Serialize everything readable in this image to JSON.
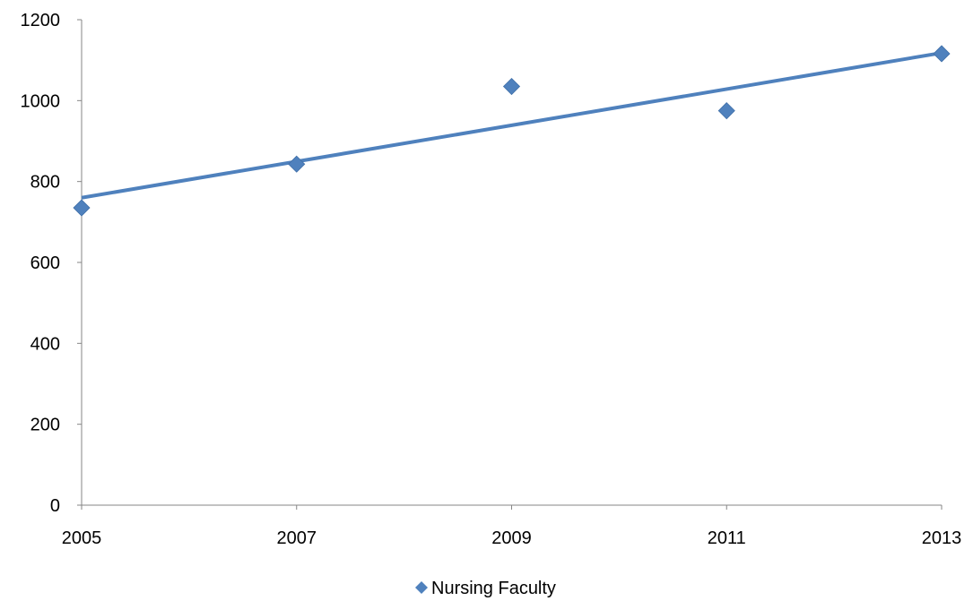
{
  "chart_data": {
    "type": "scatter",
    "x_ticks": [
      "2005",
      "2007",
      "2009",
      "2011",
      "2013"
    ],
    "y_ticks": [
      "0",
      "200",
      "400",
      "600",
      "800",
      "1000",
      "1200"
    ],
    "xlim": [
      2005,
      2013
    ],
    "ylim": [
      0,
      1200
    ],
    "grid": false,
    "legend_position": "bottom-center",
    "series": [
      {
        "name": "Nursing Faculty",
        "color": "#4F81BD",
        "marker": "diamond",
        "points": [
          {
            "x": 2005,
            "y": 735
          },
          {
            "x": 2007,
            "y": 843
          },
          {
            "x": 2009,
            "y": 1035
          },
          {
            "x": 2011,
            "y": 975
          },
          {
            "x": 2013,
            "y": 1116
          }
        ]
      }
    ],
    "trendline": {
      "type": "linear",
      "color": "#4F81BD",
      "x": [
        2005,
        2013
      ],
      "y": [
        760,
        1118
      ]
    }
  }
}
